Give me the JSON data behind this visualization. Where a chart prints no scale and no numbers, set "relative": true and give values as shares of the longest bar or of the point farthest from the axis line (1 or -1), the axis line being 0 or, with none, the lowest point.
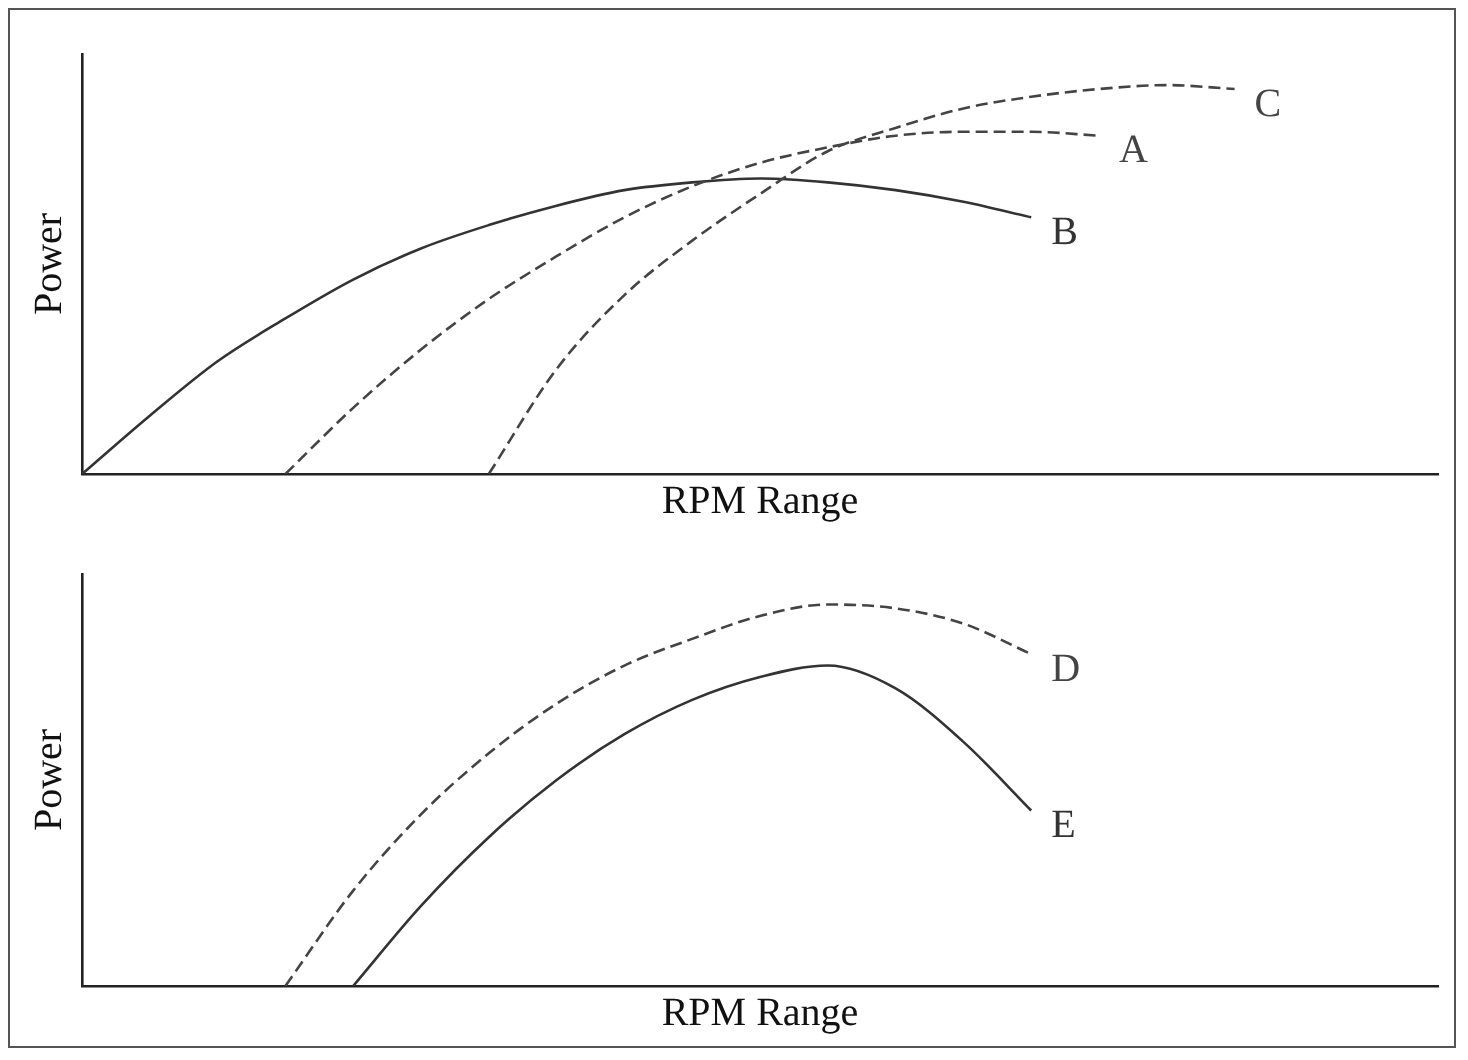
{
  "chart_data": [
    {
      "type": "line",
      "xlabel": "RPM Range",
      "ylabel": "Power",
      "relative": true,
      "grid": false,
      "legend": false,
      "marker": "none",
      "tick_labels": false,
      "categories": [
        null,
        null,
        null,
        null,
        null,
        null,
        null,
        null,
        null,
        null,
        null,
        null,
        null,
        null,
        null,
        null,
        null,
        null,
        null,
        null,
        null
      ],
      "series": [
        {
          "name": "C",
          "color": "#444444",
          "line_style": "dashed",
          "values": [
            null,
            null,
            null,
            null,
            null,
            null,
            0,
            0.27,
            0.46,
            0.6,
            0.72,
            0.83,
            0.89,
            0.94,
            0.97,
            0.99,
            1,
            0.99,
            null,
            null,
            null
          ]
        },
        {
          "name": "A",
          "color": "#444444",
          "line_style": "dashed",
          "values": [
            null,
            null,
            null,
            0,
            0.17,
            0.32,
            0.45,
            0.56,
            0.66,
            0.74,
            0.8,
            0.84,
            0.87,
            0.88,
            0.88,
            0.87,
            null,
            null,
            null,
            null,
            null
          ]
        },
        {
          "name": "B",
          "color": "#333333",
          "line_style": "solid",
          "values": [
            0,
            0.15,
            0.29,
            0.4,
            0.5,
            0.58,
            0.64,
            0.69,
            0.73,
            0.75,
            0.76,
            0.75,
            0.73,
            0.7,
            0.66,
            null,
            null,
            null,
            null,
            null,
            null
          ]
        }
      ]
    },
    {
      "type": "line",
      "xlabel": "RPM Range",
      "ylabel": "Power",
      "relative": true,
      "grid": false,
      "legend": false,
      "marker": "none",
      "tick_labels": false,
      "categories": [
        null,
        null,
        null,
        null,
        null,
        null,
        null,
        null,
        null,
        null,
        null,
        null,
        null,
        null,
        null,
        null,
        null,
        null,
        null,
        null,
        null
      ],
      "series": [
        {
          "name": "D",
          "color": "#444444",
          "line_style": "dashed",
          "values": [
            null,
            null,
            null,
            0,
            0.25,
            0.45,
            0.61,
            0.74,
            0.84,
            0.91,
            0.97,
            1,
            0.99,
            0.95,
            0.87,
            null,
            null,
            null,
            null,
            null,
            null
          ]
        },
        {
          "name": "E",
          "color": "#333333",
          "line_style": "solid",
          "values": [
            null,
            null,
            null,
            null,
            0,
            0.21,
            0.39,
            0.54,
            0.66,
            0.75,
            0.81,
            0.84,
            0.78,
            0.64,
            0.46,
            null,
            null,
            null,
            null,
            null,
            null
          ]
        }
      ]
    }
  ]
}
